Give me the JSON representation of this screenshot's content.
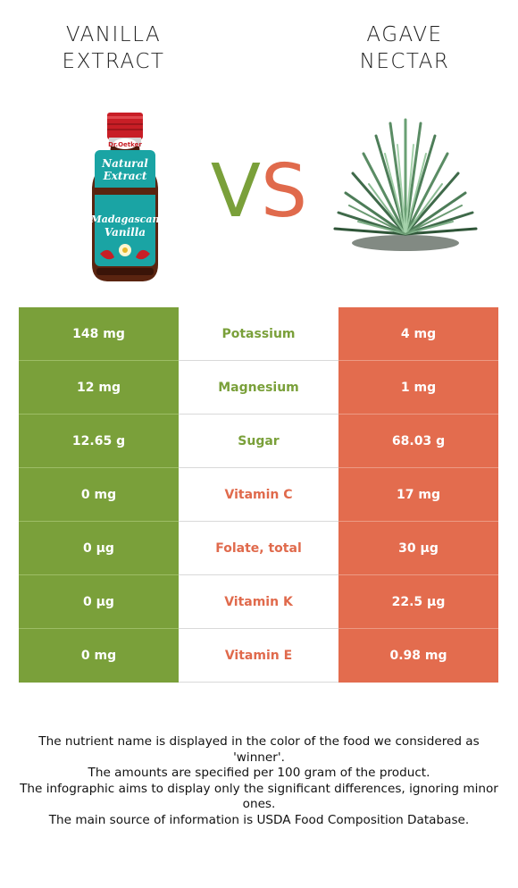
{
  "header": {
    "left_title": "VANILLA\nEXTRACT",
    "left_title_line1": "VANILLA",
    "left_title_line2": "EXTRACT",
    "right_title_line1": "AGAVE",
    "right_title_line2": "NECTAR",
    "vs_v": "V",
    "vs_s": "S"
  },
  "bottle_label": {
    "brand": "Dr.Oetker",
    "line1": "Natural",
    "line2": "Extract",
    "line3": "Madagascan",
    "line4": "Vanilla"
  },
  "colors": {
    "left_winner": "#7aa03a",
    "right_winner": "#e06a4c"
  },
  "rows": [
    {
      "left": "148 mg",
      "nutrient": "Potassium",
      "right": "4 mg",
      "winner": "left"
    },
    {
      "left": "12 mg",
      "nutrient": "Magnesium",
      "right": "1 mg",
      "winner": "left"
    },
    {
      "left": "12.65 g",
      "nutrient": "Sugar",
      "right": "68.03 g",
      "winner": "left"
    },
    {
      "left": "0 mg",
      "nutrient": "Vitamin C",
      "right": "17 mg",
      "winner": "right"
    },
    {
      "left": "0 µg",
      "nutrient": "Folate, total",
      "right": "30 µg",
      "winner": "right"
    },
    {
      "left": "0 µg",
      "nutrient": "Vitamin K",
      "right": "22.5 µg",
      "winner": "right"
    },
    {
      "left": "0 mg",
      "nutrient": "Vitamin E",
      "right": "0.98 mg",
      "winner": "right"
    }
  ],
  "footnote": {
    "line1": "The nutrient name is displayed in the color of the food we considered as 'winner'.",
    "line2": "The amounts are specified per 100 gram of the product.",
    "line3": "The infographic aims to display only the significant differences, ignoring minor ones.",
    "line4": "The main source of information is USDA Food Composition Database."
  }
}
